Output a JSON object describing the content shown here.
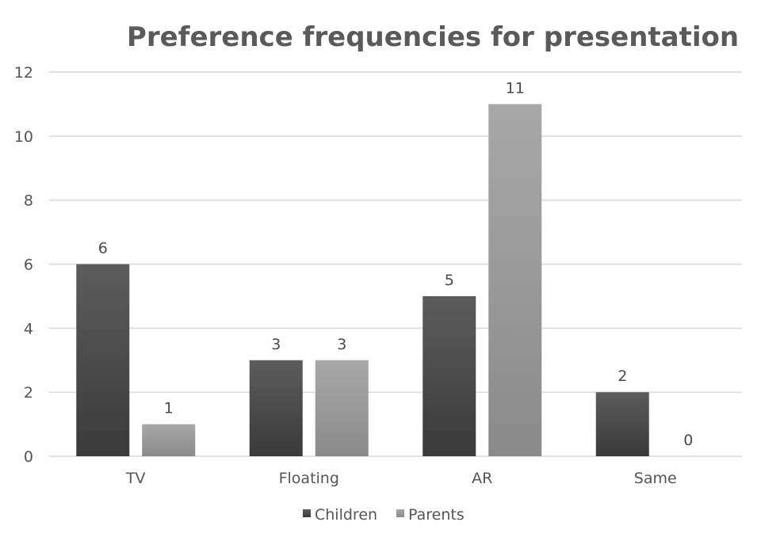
{
  "chart_data": {
    "type": "bar",
    "title": "Preference frequencies for presentation",
    "xlabel": "",
    "ylabel": "",
    "categories": [
      "TV",
      "Floating",
      "AR",
      "Same"
    ],
    "series": [
      {
        "name": "Children",
        "values": [
          6,
          3,
          5,
          2
        ],
        "color": "#3a3a3a",
        "color_light": "#5c5c5c"
      },
      {
        "name": "Parents",
        "values": [
          1,
          3,
          11,
          0
        ],
        "color": "#8a8a8a",
        "color_light": "#a8a8a8"
      }
    ],
    "ylim": [
      0,
      12
    ],
    "yticks": [
      0,
      2,
      4,
      6,
      8,
      10,
      12
    ],
    "grid": true,
    "data_labels": true,
    "legend": "bottom"
  }
}
